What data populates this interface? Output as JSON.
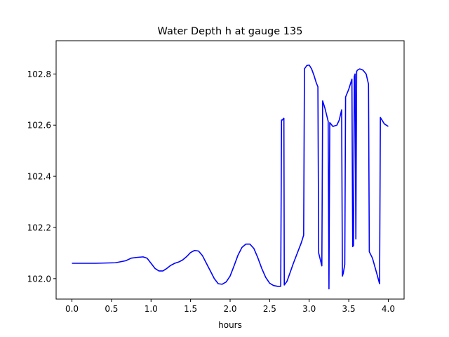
{
  "chart_data": {
    "type": "line",
    "title": "Water Depth h at gauge 135",
    "xlabel": "hours",
    "ylabel": "",
    "xlim": [
      -0.2,
      4.2
    ],
    "ylim": [
      101.92,
      102.93
    ],
    "xticks": [
      0.0,
      0.5,
      1.0,
      1.5,
      2.0,
      2.5,
      3.0,
      3.5,
      4.0
    ],
    "xtick_labels": [
      "0.0",
      "0.5",
      "1.0",
      "1.5",
      "2.0",
      "2.5",
      "3.0",
      "3.5",
      "4.0"
    ],
    "yticks": [
      102.0,
      102.2,
      102.4,
      102.6,
      102.8
    ],
    "ytick_labels": [
      "102.0",
      "102.2",
      "102.4",
      "102.6",
      "102.8"
    ],
    "grid": false,
    "legend": "none",
    "series": [
      {
        "color": "#0000ff",
        "x": [
          0.0,
          0.3,
          0.55,
          0.68,
          0.75,
          0.82,
          0.9,
          0.95,
          1.0,
          1.05,
          1.1,
          1.15,
          1.2,
          1.25,
          1.3,
          1.35,
          1.4,
          1.45,
          1.5,
          1.55,
          1.6,
          1.65,
          1.7,
          1.75,
          1.8,
          1.85,
          1.9,
          1.95,
          2.0,
          2.05,
          2.1,
          2.15,
          2.2,
          2.25,
          2.3,
          2.35,
          2.4,
          2.45,
          2.5,
          2.55,
          2.6,
          2.64,
          2.65,
          2.66,
          2.67,
          2.68,
          2.685,
          2.72,
          2.8,
          2.9,
          2.93,
          2.94,
          2.97,
          3.0,
          3.03,
          3.06,
          3.09,
          3.11,
          3.12,
          3.16,
          3.17,
          3.2,
          3.24,
          3.25,
          3.26,
          3.3,
          3.35,
          3.38,
          3.41,
          3.42,
          3.43,
          3.45,
          3.46,
          3.5,
          3.54,
          3.55,
          3.56,
          3.57,
          3.58,
          3.59,
          3.6,
          3.61,
          3.64,
          3.68,
          3.72,
          3.75,
          3.76,
          3.8,
          3.85,
          3.89,
          3.9,
          3.95,
          4.0
        ],
        "y": [
          102.06,
          102.06,
          102.062,
          102.07,
          102.08,
          102.083,
          102.085,
          102.08,
          102.06,
          102.04,
          102.03,
          102.03,
          102.04,
          102.052,
          102.06,
          102.065,
          102.073,
          102.086,
          102.102,
          102.11,
          102.108,
          102.09,
          102.06,
          102.03,
          102.0,
          101.98,
          101.978,
          101.987,
          102.01,
          102.05,
          102.092,
          102.122,
          102.135,
          102.135,
          102.118,
          102.082,
          102.04,
          102.005,
          101.982,
          101.973,
          101.97,
          101.97,
          102.62,
          102.62,
          102.624,
          102.627,
          101.975,
          101.99,
          102.06,
          102.14,
          102.17,
          102.82,
          102.833,
          102.835,
          102.82,
          102.795,
          102.765,
          102.75,
          102.1,
          102.05,
          102.695,
          102.665,
          102.615,
          101.96,
          102.61,
          102.595,
          102.6,
          102.62,
          102.66,
          102.01,
          102.02,
          102.055,
          102.71,
          102.74,
          102.78,
          102.125,
          102.13,
          102.79,
          102.8,
          102.155,
          102.81,
          102.815,
          102.82,
          102.815,
          102.8,
          102.76,
          102.105,
          102.08,
          102.025,
          101.98,
          102.63,
          102.605,
          102.595
        ]
      }
    ]
  }
}
